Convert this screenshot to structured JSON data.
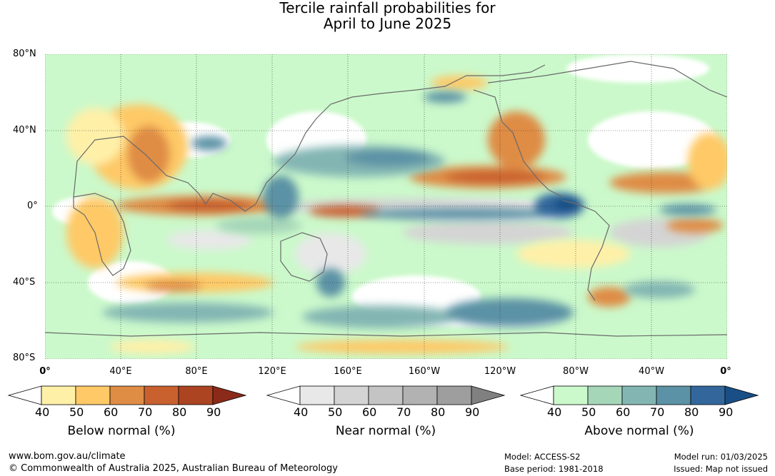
{
  "title": {
    "line1": "Tercile rainfall probabilities for",
    "line2": "April to June 2025"
  },
  "lat_labels": [
    "80°N",
    "40°N",
    "0°",
    "40°S",
    "80°S"
  ],
  "lon_labels": [
    "0°",
    "40°E",
    "80°E",
    "120°E",
    "160°E",
    "160°W",
    "120°W",
    "80°W",
    "40°W",
    "0°"
  ],
  "colorbars": [
    {
      "label": "Below normal (%)",
      "ticks": [
        "40",
        "50",
        "60",
        "70",
        "80",
        "90"
      ],
      "colors": [
        "#ffffff",
        "#fff0a8",
        "#fec966",
        "#df8c45",
        "#c9612f",
        "#ac4422",
        "#8b2a18"
      ]
    },
    {
      "label": "Near normal (%)",
      "ticks": [
        "40",
        "50",
        "60",
        "70",
        "80",
        "90"
      ],
      "colors": [
        "#ffffff",
        "#e8e8e8",
        "#d4d4d4",
        "#c4c4c4",
        "#b2b2b2",
        "#9e9e9e",
        "#808080"
      ]
    },
    {
      "label": "Above normal (%)",
      "ticks": [
        "40",
        "50",
        "60",
        "70",
        "80",
        "90"
      ],
      "colors": [
        "#ffffff",
        "#cbf9cb",
        "#a5d6b8",
        "#83b6b3",
        "#5b92a5",
        "#33679c",
        "#194f86"
      ]
    }
  ],
  "footer": {
    "url": "www.bom.gov.au/climate",
    "copyright": "© Commonwealth of Australia 2025, Australian Bureau of Meteorology",
    "model": "Model: ACCESS-S2",
    "base_period": "Base period: 1981-2018",
    "model_run": "Model run: 01/03/2025",
    "issued": "Issued: Map not issued"
  }
}
